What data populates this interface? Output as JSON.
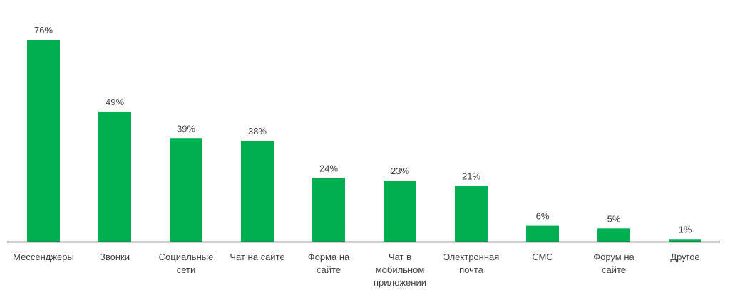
{
  "chart_data": {
    "type": "bar",
    "categories": [
      "Мессенджеры",
      "Звонки",
      "Социальные сети",
      "Чат на сайте",
      "Форма на сайте",
      "Чат в мобильном приложении",
      "Электронная почта",
      "СМС",
      "Форум на сайте",
      "Другое"
    ],
    "category_lines": [
      [
        "Мессенджеры"
      ],
      [
        "Звонки"
      ],
      [
        "Социальные",
        "сети"
      ],
      [
        "Чат на сайте"
      ],
      [
        "Форма на",
        "сайте"
      ],
      [
        "Чат в",
        "мобильном",
        "приложении"
      ],
      [
        "Электронная",
        "почта"
      ],
      [
        "СМС"
      ],
      [
        "Форум на",
        "сайте"
      ],
      [
        "Другое"
      ]
    ],
    "values": [
      76,
      49,
      39,
      38,
      24,
      23,
      21,
      6,
      5,
      1
    ],
    "data_labels": [
      "76%",
      "49%",
      "39%",
      "38%",
      "24%",
      "23%",
      "21%",
      "6%",
      "5%",
      "1%"
    ],
    "ylim": [
      0,
      76
    ],
    "grid": false,
    "legend": "none",
    "bar_color": "#00b050",
    "text_color": "#404040",
    "axis_color": "#404040"
  }
}
